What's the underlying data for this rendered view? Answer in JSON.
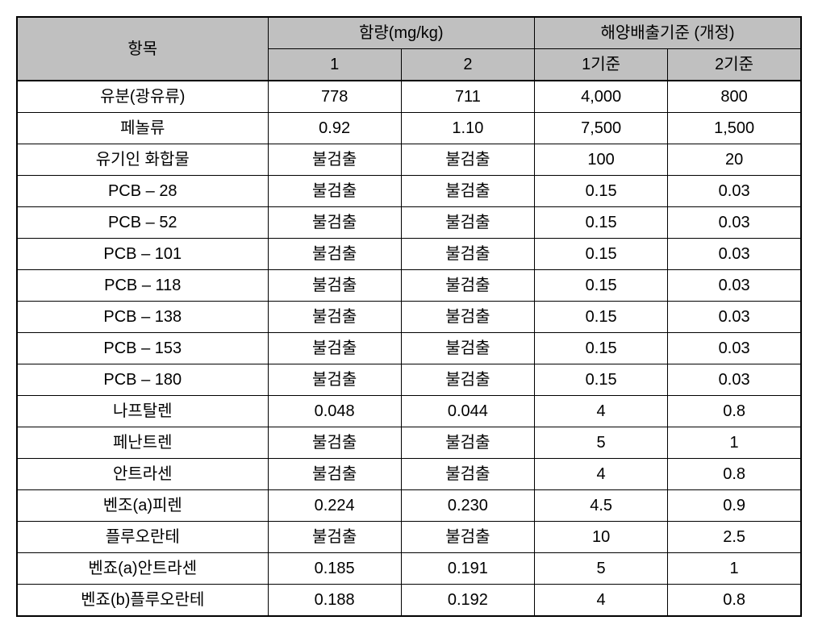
{
  "table": {
    "type": "table",
    "background_color": "#ffffff",
    "header_bg_color": "#c0c0c0",
    "border_color": "#000000",
    "font_size": 20,
    "headers": {
      "item": "항목",
      "content": "함량(mg/kg)",
      "standard": "해양배출기준 (개정)",
      "col1": "1",
      "col2": "2",
      "std1": "1기준",
      "std2": "2기준"
    },
    "rows": [
      {
        "item": "유분(광유류)",
        "v1": "778",
        "v2": "711",
        "s1": "4,000",
        "s2": "800"
      },
      {
        "item": "페놀류",
        "v1": "0.92",
        "v2": "1.10",
        "s1": "7,500",
        "s2": "1,500"
      },
      {
        "item": "유기인 화합물",
        "v1": "불검출",
        "v2": "불검출",
        "s1": "100",
        "s2": "20"
      },
      {
        "item": "PCB – 28",
        "v1": "불검출",
        "v2": "불검출",
        "s1": "0.15",
        "s2": "0.03"
      },
      {
        "item": "PCB – 52",
        "v1": "불검출",
        "v2": "불검출",
        "s1": "0.15",
        "s2": "0.03"
      },
      {
        "item": "PCB – 101",
        "v1": "불검출",
        "v2": "불검출",
        "s1": "0.15",
        "s2": "0.03"
      },
      {
        "item": "PCB – 118",
        "v1": "불검출",
        "v2": "불검출",
        "s1": "0.15",
        "s2": "0.03"
      },
      {
        "item": "PCB – 138",
        "v1": "불검출",
        "v2": "불검출",
        "s1": "0.15",
        "s2": "0.03"
      },
      {
        "item": "PCB – 153",
        "v1": "불검출",
        "v2": "불검출",
        "s1": "0.15",
        "s2": "0.03"
      },
      {
        "item": "PCB – 180",
        "v1": "불검출",
        "v2": "불검출",
        "s1": "0.15",
        "s2": "0.03"
      },
      {
        "item": "나프탈렌",
        "v1": "0.048",
        "v2": "0.044",
        "s1": "4",
        "s2": "0.8"
      },
      {
        "item": "페난트렌",
        "v1": "불검출",
        "v2": "불검출",
        "s1": "5",
        "s2": "1"
      },
      {
        "item": "안트라센",
        "v1": "불검출",
        "v2": "불검출",
        "s1": "4",
        "s2": "0.8"
      },
      {
        "item": "벤조(a)피렌",
        "v1": "0.224",
        "v2": "0.230",
        "s1": "4.5",
        "s2": "0.9"
      },
      {
        "item": "플루오란테",
        "v1": "불검출",
        "v2": "불검출",
        "s1": "10",
        "s2": "2.5"
      },
      {
        "item": "벤죠(a)안트라센",
        "v1": "0.185",
        "v2": "0.191",
        "s1": "5",
        "s2": "1"
      },
      {
        "item": "벤죠(b)플루오란테",
        "v1": "0.188",
        "v2": "0.192",
        "s1": "4",
        "s2": "0.8"
      }
    ]
  }
}
